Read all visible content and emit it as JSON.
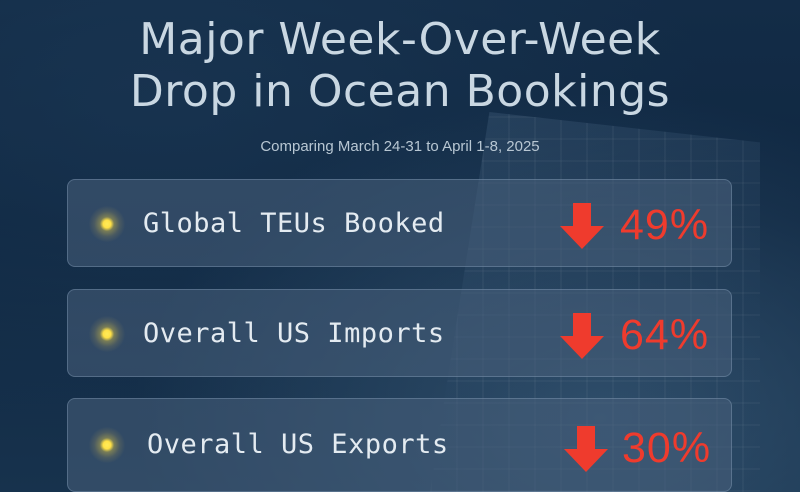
{
  "header": {
    "title_line1": "Major Week-Over-Week",
    "title_line2": "Drop in Ocean Bookings",
    "subtitle": "Comparing March 24-31 to April 1-8, 2025"
  },
  "metrics": [
    {
      "label": "Global TEUs Booked",
      "value": "49%",
      "icon": "arrow-down-icon"
    },
    {
      "label": "Overall US Imports",
      "value": "64%",
      "icon": "arrow-down-icon"
    },
    {
      "label": "Overall US Exports",
      "value": "30%",
      "icon": "arrow-down-icon"
    }
  ],
  "colors": {
    "background": "#0f2740",
    "decline": "#ef3b2d",
    "bullet": "#ffe14a",
    "title": "#c9d7e2"
  }
}
